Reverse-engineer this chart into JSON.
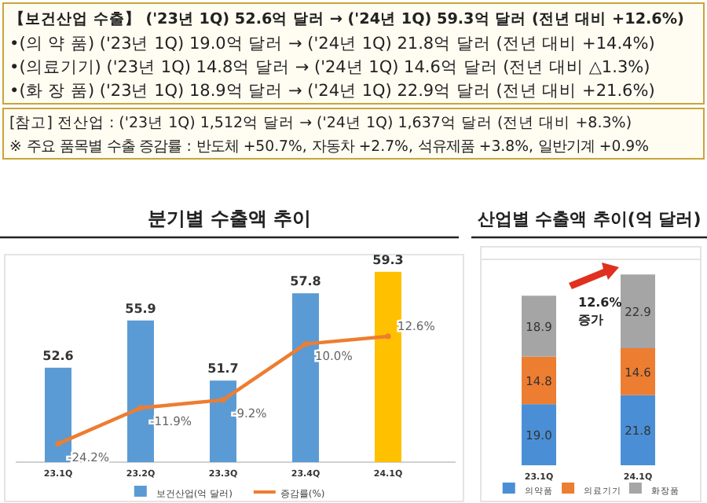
{
  "chart_data": [
    {
      "type": "other",
      "annotations": [
        "【보건산업 수출】 ('23년 1Q) 52.6억 달러 → ('24년 1Q) 59.3억 달러 (전년 대비 +12.6%)",
        "•(의 약 품) ('23년 1Q) 19.0억 달러 → ('24년 1Q) 21.8억 달러 (전년 대비 +14.4%)",
        "•(의료기기) ('23년 1Q) 14.8억 달러 → ('24년 1Q) 14.6억 달러 (전년 대비 △1.3%)",
        "•(화 장 품) ('23년 1Q) 18.9억 달러 → ('24년 1Q) 22.9억 달러 (전년 대비 +21.6%)",
        "[참고] 전산업 : ('23년 1Q) 1,512억 달러 → ('24년 1Q) 1,637억 달러 (전년 대비 +8.3%)",
        "※ 주요 품목별 수출 증감률 : 반도체 +50.7%, 자동차 +2.7%, 석유제품 +3.8%, 일반기계 +0.9%"
      ]
    },
    {
      "type": "bar",
      "title": "분기별 수출액 추이",
      "categories": [
        "23.1Q",
        "23.2Q",
        "23.3Q",
        "23.4Q",
        "24.1Q"
      ],
      "series": [
        {
          "name": "보건산업(억 달러)",
          "color": "#5b9bd5",
          "colors": [
            "#5b9bd5",
            "#5b9bd5",
            "#5b9bd5",
            "#5b9bd5",
            "#ffc000"
          ],
          "values": [
            52.6,
            55.9,
            51.7,
            57.8,
            59.3
          ],
          "value_labels": [
            "52.6",
            "55.9",
            "51.7",
            "57.8",
            "59.3"
          ]
        },
        {
          "name": "증감률(%)",
          "type": "line",
          "axis": "y2",
          "color": "#ed7d31",
          "values": [
            -24.2,
            -11.9,
            -9.2,
            10.0,
            12.6
          ],
          "value_labels": [
            "-24.2%",
            "-11.9%",
            "-9.2%",
            "10.0%",
            "12.6%"
          ]
        }
      ],
      "ylim": [
        46,
        60.5
      ],
      "y2lim": [
        -30.5,
        40.6
      ],
      "marker": "circle",
      "legend": "bottom",
      "tick_labels": "x"
    },
    {
      "type": "bar",
      "title": "산업별 수출액 추이(억 달러)",
      "stacked": true,
      "categories": [
        "23.1Q",
        "24.1Q"
      ],
      "series": [
        {
          "name": "의약품",
          "color": "#4a8fd6",
          "values": [
            19.0,
            21.8
          ],
          "value_labels": [
            "19.0",
            "21.8"
          ]
        },
        {
          "name": "의료기기",
          "color": "#ed7d31",
          "values": [
            14.8,
            14.6
          ],
          "value_labels": [
            "14.8",
            "14.6"
          ]
        },
        {
          "name": "화장품",
          "color": "#a5a5a5",
          "values": [
            18.9,
            22.9
          ],
          "value_labels": [
            "18.9",
            "22.9"
          ]
        }
      ],
      "ylim": [
        0,
        64
      ],
      "legend": "bottom",
      "tick_labels": "x",
      "annotations": [
        "12.6% 증가"
      ]
    }
  ]
}
